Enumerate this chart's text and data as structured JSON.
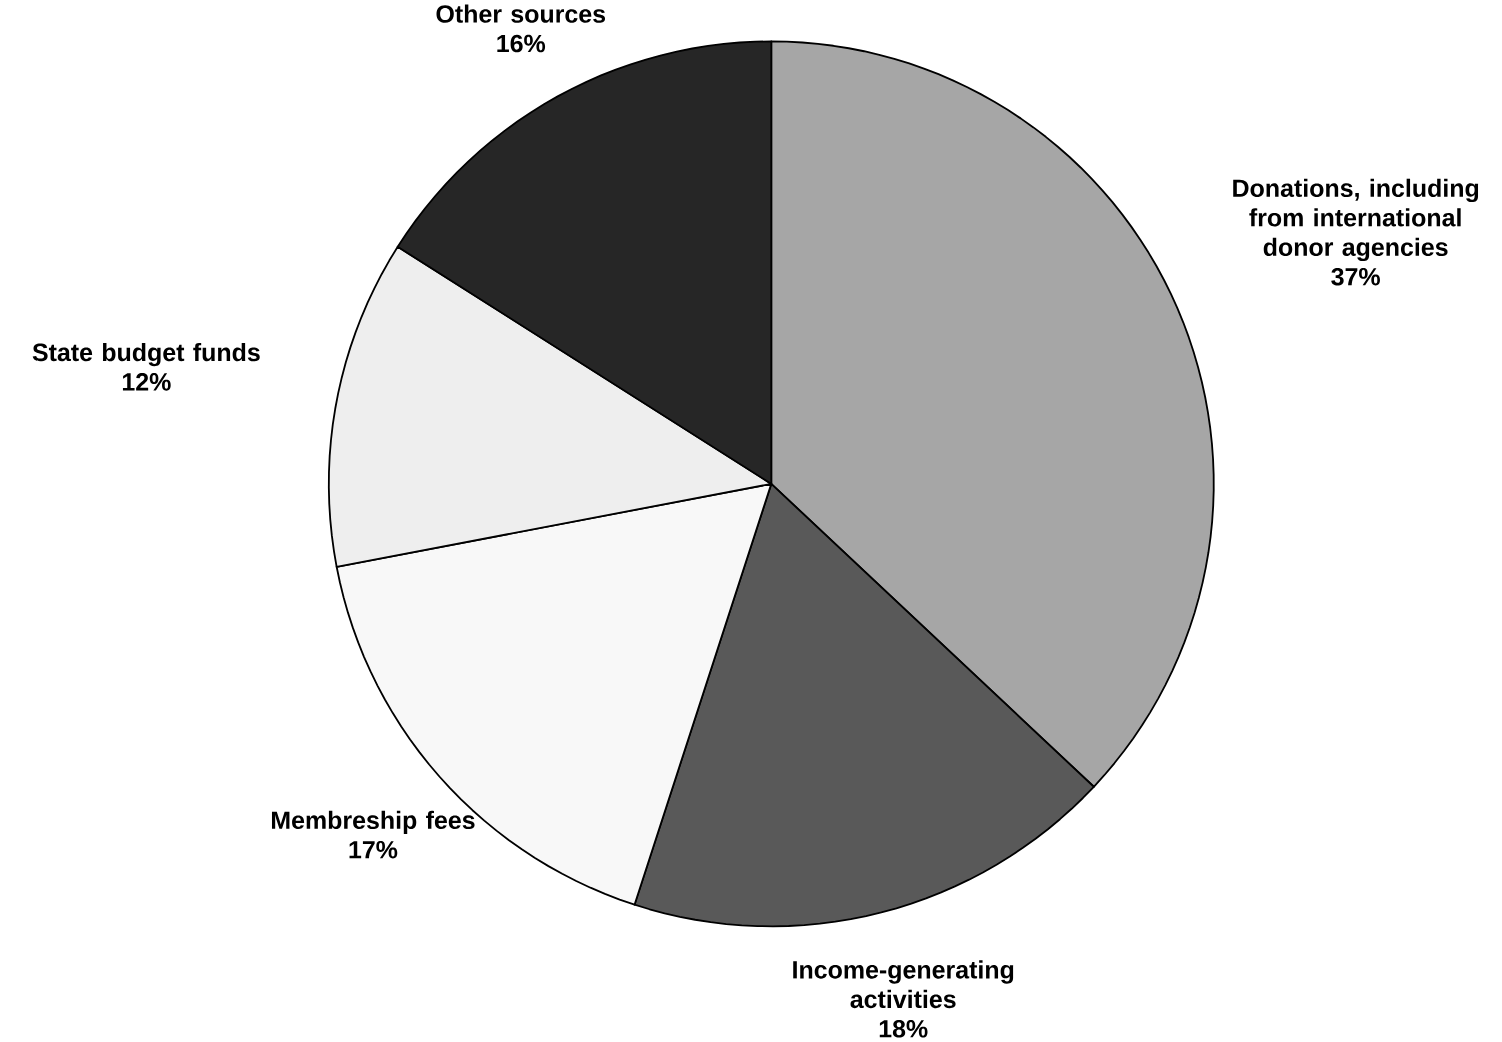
{
  "chart_data": {
    "type": "pie",
    "categories": [
      "Donations, including from international donor agencies",
      "Income-generating activities",
      "Membreship fees",
      "State budget funds",
      "Other sources"
    ],
    "values": [
      37,
      18,
      17,
      12,
      16
    ],
    "value_labels": [
      "37%",
      "18%",
      "17%",
      "12%",
      "16%"
    ],
    "colors": [
      "#a6a6a6",
      "#595959",
      "#f8f8f8",
      "#eeeeee",
      "#262626"
    ]
  }
}
